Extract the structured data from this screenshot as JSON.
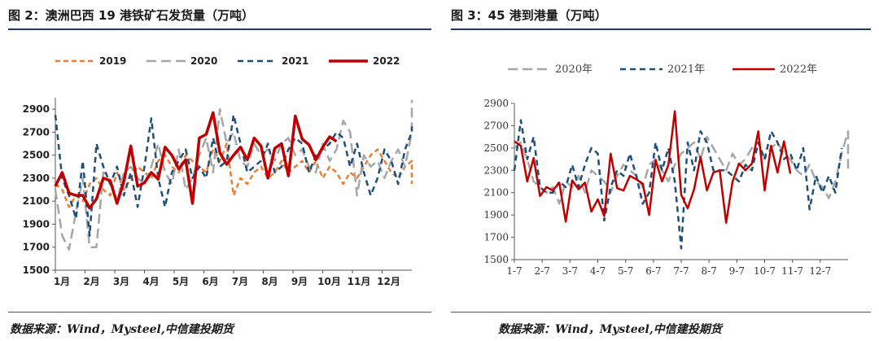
{
  "left": {
    "title": "图 2：澳洲巴西 19 港铁矿石发货量（万吨）",
    "source": "数据来源：Wind，Mysteel,中信建投期货",
    "chart_data": {
      "type": "line",
      "ylim": [
        1500,
        3000
      ],
      "yticks": [
        1500,
        1700,
        1900,
        2100,
        2300,
        2500,
        2700,
        2900
      ],
      "xlim": [
        1,
        13
      ],
      "xticks": [
        {
          "label": "1月",
          "x": 1
        },
        {
          "label": "2月",
          "x": 2
        },
        {
          "label": "3月",
          "x": 3
        },
        {
          "label": "4月",
          "x": 4
        },
        {
          "label": "5月",
          "x": 5
        },
        {
          "label": "6月",
          "x": 6
        },
        {
          "label": "7月",
          "x": 7
        },
        {
          "label": "8月",
          "x": 8
        },
        {
          "label": "9月",
          "x": 9
        },
        {
          "label": "10月",
          "x": 10
        },
        {
          "label": "11月",
          "x": 11
        },
        {
          "label": "12月",
          "x": 12
        }
      ],
      "legend_position": "top",
      "series": [
        {
          "name": "2019",
          "color": "#ed7d31",
          "dash": "short",
          "x0": 1,
          "step": 0.2308,
          "values": [
            2250,
            2200,
            2050,
            2150,
            2100,
            2250,
            2300,
            2200,
            2150,
            2350,
            2200,
            2300,
            2400,
            2350,
            2300,
            2450,
            2500,
            2400,
            2350,
            2500,
            2450,
            2400,
            2350,
            2550,
            2450,
            2600,
            2150,
            2300,
            2250,
            2350,
            2400,
            2300,
            2350,
            2450,
            2350,
            2400,
            2450,
            2350,
            2450,
            2300,
            2400,
            2350,
            2250,
            2350,
            2300,
            2400,
            2500,
            2550,
            2450,
            2350,
            2300,
            2400,
            2450,
            2350,
            2250
          ]
        },
        {
          "name": "2020",
          "color": "#a6a6a6",
          "dash": "long",
          "x0": 1,
          "step": 0.2308,
          "values": [
            2200,
            1800,
            1680,
            2000,
            2300,
            1700,
            1700,
            2350,
            2250,
            2100,
            2350,
            2400,
            2300,
            2250,
            2400,
            2600,
            2350,
            2250,
            2550,
            2200,
            2300,
            2500,
            2650,
            2350,
            2900,
            2600,
            2700,
            2450,
            2400,
            2600,
            2500,
            2550,
            2450,
            2600,
            2650,
            2500,
            2550,
            2400,
            2350,
            2600,
            2450,
            2550,
            2800,
            2700,
            2150,
            2500,
            2400,
            2450,
            2300,
            2450,
            2550,
            2400,
            2700,
            2980
          ]
        },
        {
          "name": "2021",
          "color": "#1f4e79",
          "dash": "medium",
          "x0": 1,
          "step": 0.2308,
          "values": [
            2850,
            2300,
            2150,
            1950,
            2450,
            1800,
            2600,
            2400,
            2250,
            2400,
            2150,
            2350,
            2050,
            2400,
            2820,
            2300,
            2050,
            2350,
            2450,
            2550,
            2300,
            2400,
            2300,
            2650,
            2400,
            2450,
            2850,
            2600,
            2350,
            2400,
            2450,
            2600,
            2350,
            2400,
            2550,
            2650,
            2600,
            2350,
            2500,
            2550,
            2600,
            2700,
            2650,
            2400,
            2600,
            2350,
            2150,
            2300,
            2550,
            2450,
            2250,
            2550,
            2700,
            2750
          ]
        },
        {
          "name": "2022",
          "color": "#c00000",
          "dash": "solid",
          "x0": 1,
          "step": 0.2308,
          "values": [
            2230,
            2350,
            2170,
            2150,
            2150,
            2040,
            2120,
            2300,
            2280,
            2080,
            2270,
            2580,
            2230,
            2260,
            2350,
            2290,
            2570,
            2500,
            2380,
            2460,
            2080,
            2650,
            2680,
            2870,
            2520,
            2420,
            2500,
            2570,
            2460,
            2650,
            2580,
            2300,
            2560,
            2600,
            2320,
            2840,
            2640,
            2590,
            2460,
            2570,
            2660,
            2620
          ]
        }
      ]
    }
  },
  "right": {
    "title": "图 3：45 港到港量（万吨）",
    "source": "数据来源：Wind，Mysteel,中信建投期货",
    "chart_data": {
      "type": "line",
      "ylim": [
        1500,
        2900
      ],
      "yticks": [
        1500,
        1700,
        1900,
        2100,
        2300,
        2500,
        2700,
        2900
      ],
      "xlim": [
        1,
        13
      ],
      "xticks": [
        {
          "label": "1-7",
          "x": 1
        },
        {
          "label": "2-7",
          "x": 2
        },
        {
          "label": "3-7",
          "x": 3
        },
        {
          "label": "4-7",
          "x": 4
        },
        {
          "label": "5-7",
          "x": 5
        },
        {
          "label": "6-7",
          "x": 6
        },
        {
          "label": "7-7",
          "x": 7
        },
        {
          "label": "8-7",
          "x": 8
        },
        {
          "label": "9-7",
          "x": 9
        },
        {
          "label": "10-7",
          "x": 10
        },
        {
          "label": "11-7",
          "x": 11
        },
        {
          "label": "12-7",
          "x": 12
        }
      ],
      "legend_position": "top",
      "series": [
        {
          "name": "2020年",
          "color": "#a6a6a6",
          "dash": "long",
          "x0": 1,
          "step": 0.2308,
          "values": [
            2500,
            2550,
            2400,
            2200,
            2150,
            2100,
            2150,
            2000,
            2200,
            2150,
            2250,
            2100,
            2300,
            2250,
            2200,
            2100,
            2250,
            2350,
            2300,
            2250,
            2150,
            2350,
            2400,
            2300,
            2200,
            2350,
            2450,
            2500,
            2550,
            2400,
            2600,
            2500,
            2400,
            2300,
            2450,
            2350,
            2400,
            2500,
            2550,
            2400,
            2500,
            2550,
            2450,
            2400,
            2300,
            2250,
            2350,
            2200,
            2150,
            2050,
            2200,
            2450,
            2650,
            2300
          ]
        },
        {
          "name": "2021年",
          "color": "#1f4e79",
          "dash": "medium",
          "x0": 1,
          "step": 0.2308,
          "values": [
            2300,
            2750,
            2400,
            2600,
            2150,
            2100,
            2100,
            2200,
            2150,
            2350,
            2150,
            2350,
            2500,
            2450,
            1850,
            2150,
            2300,
            2250,
            2450,
            2250,
            2000,
            2100,
            2550,
            2300,
            2500,
            2200,
            1600,
            2550,
            2300,
            2650,
            2550,
            2300,
            2300,
            2300,
            2250,
            2200,
            2350,
            2300,
            2550,
            2400,
            2650,
            2550,
            2400,
            2450,
            2300,
            2500,
            1950,
            2250,
            2100,
            2250,
            2100,
            2500
          ]
        },
        {
          "name": "2022年",
          "color": "#c00000",
          "dash": "solid",
          "x0": 1,
          "step": 0.2308,
          "values": [
            2560,
            2520,
            2200,
            2410,
            2070,
            2150,
            2120,
            2190,
            1840,
            2210,
            2130,
            2190,
            1930,
            2040,
            1890,
            2450,
            2140,
            2120,
            2250,
            2220,
            2180,
            1900,
            2390,
            2200,
            2350,
            2830,
            2080,
            1960,
            2130,
            2420,
            2120,
            2280,
            2300,
            1830,
            2200,
            2360,
            2300,
            2360,
            2650,
            2120,
            2520,
            2280,
            2560,
            2270
          ]
        }
      ]
    }
  }
}
